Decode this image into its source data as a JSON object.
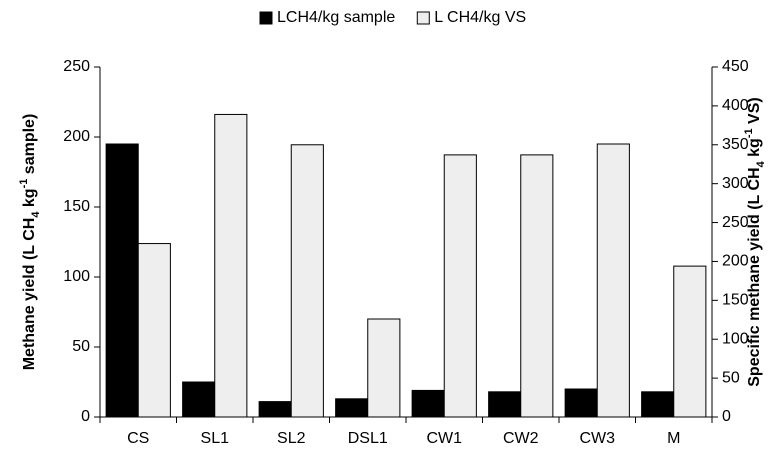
{
  "chart_data": {
    "type": "bar",
    "legend_position": "top",
    "ylabel_parts": [
      "Methane yield (L CH",
      "4",
      " kg",
      "-1",
      " sample)"
    ],
    "y2label_parts": [
      "Specific methane yield (L CH",
      "4",
      " kg",
      "-1",
      " VS)"
    ],
    "categories": [
      "CS",
      "SL1",
      "SL2",
      "DSL1",
      "CW1",
      "CW2",
      "CW3",
      "M"
    ],
    "series": [
      {
        "name": "LCH4/kg sample",
        "color": "#000000",
        "values": [
          195,
          25,
          11,
          13,
          19,
          18,
          20,
          18
        ]
      },
      {
        "name": "L CH4/kg VS",
        "color": "#eeeeee",
        "axis": "y2",
        "values": [
          223,
          389,
          350,
          126,
          337,
          337,
          351,
          194
        ]
      }
    ],
    "ylim": [
      0,
      250
    ],
    "yticks": [
      0,
      50,
      100,
      150,
      200,
      250
    ],
    "y2lim": [
      0,
      450
    ],
    "y2ticks": [
      0,
      50,
      100,
      150,
      200,
      250,
      300,
      350,
      400,
      450
    ],
    "grid": false
  }
}
